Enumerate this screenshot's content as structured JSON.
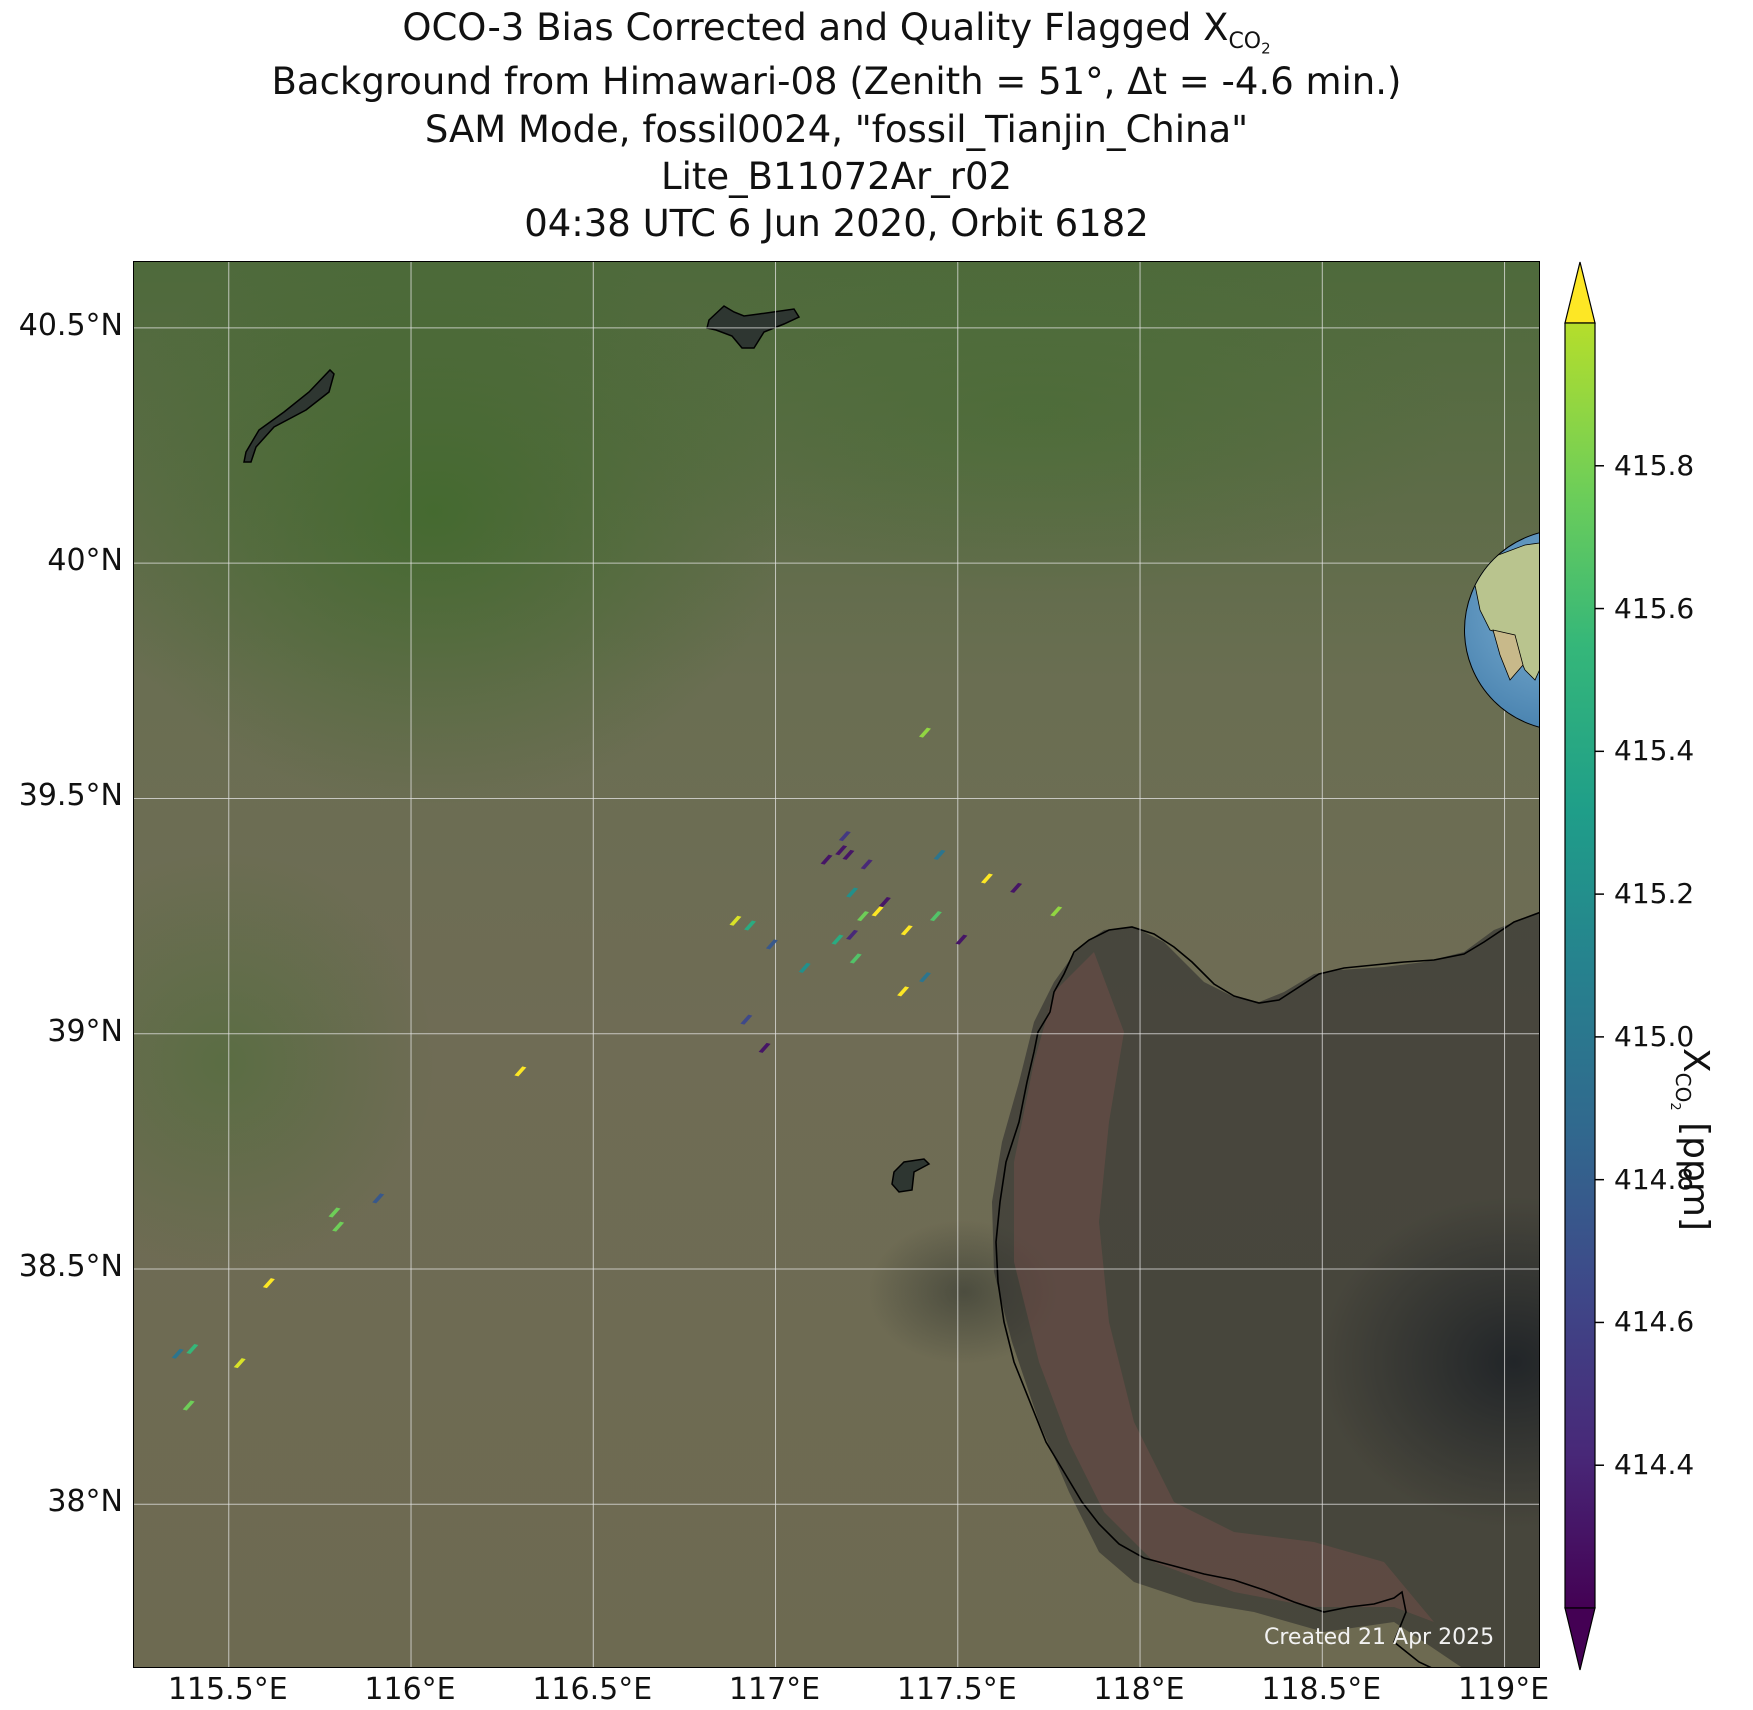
{
  "title": {
    "line1_prefix": "OCO-3 Bias Corrected and Quality Flagged X",
    "line1_sub": "CO",
    "line1_subsub": "2",
    "line2": "Background from Himawari-08 (Zenith = 51°, Δt = -4.6 min.)",
    "line3": "SAM Mode, fossil0024, \"fossil_Tianjin_China\"",
    "line4": "Lite_B11072Ar_r02",
    "line5": "04:38 UTC 6 Jun 2020, Orbit 6182"
  },
  "map": {
    "lon_range": [
      115.24,
      119.1
    ],
    "lat_range": [
      37.65,
      40.64
    ],
    "lon_ticks": [
      {
        "value": 115.5,
        "label": "115.5°E"
      },
      {
        "value": 116.0,
        "label": "116°E"
      },
      {
        "value": 116.5,
        "label": "116.5°E"
      },
      {
        "value": 117.0,
        "label": "117°E"
      },
      {
        "value": 117.5,
        "label": "117.5°E"
      },
      {
        "value": 118.0,
        "label": "118°E"
      },
      {
        "value": 118.5,
        "label": "118.5°E"
      },
      {
        "value": 119.0,
        "label": "119°E"
      }
    ],
    "lat_ticks": [
      {
        "value": 38.0,
        "label": "38°N"
      },
      {
        "value": 38.5,
        "label": "38.5°N"
      },
      {
        "value": 39.0,
        "label": "39°N"
      },
      {
        "value": 39.5,
        "label": "39.5°N"
      },
      {
        "value": 40.0,
        "label": "40°N"
      },
      {
        "value": 40.5,
        "label": "40.5°N"
      }
    ],
    "grid": true,
    "watermark": "Created 21 Apr 2025",
    "inset_globe": {
      "present": true,
      "target_marker": "red-star"
    }
  },
  "colorbar": {
    "label_prefix": "X",
    "label_sub": "CO",
    "label_subsub": "2",
    "label_suffix": " [ppm]",
    "range": [
      414.2,
      416.0
    ],
    "ticks": [
      "414.4",
      "414.6",
      "414.8",
      "415.0",
      "415.2",
      "415.4",
      "415.6",
      "415.8"
    ],
    "extend": "both",
    "colormap": "viridis"
  },
  "chart_data": {
    "type": "scatter",
    "x_quantity": "longitude (°E)",
    "y_quantity": "latitude (°N)",
    "value_quantity": "XCO2 (ppm)",
    "points": [
      {
        "lon": 117.41,
        "lat": 39.64,
        "xco2": 415.7
      },
      {
        "lon": 117.19,
        "lat": 39.42,
        "xco2": 414.5
      },
      {
        "lon": 117.18,
        "lat": 39.39,
        "xco2": 414.3
      },
      {
        "lon": 117.14,
        "lat": 39.37,
        "xco2": 414.3
      },
      {
        "lon": 117.2,
        "lat": 39.38,
        "xco2": 414.3
      },
      {
        "lon": 117.25,
        "lat": 39.36,
        "xco2": 414.4
      },
      {
        "lon": 117.45,
        "lat": 39.38,
        "xco2": 414.9
      },
      {
        "lon": 117.58,
        "lat": 39.33,
        "xco2": 416.0
      },
      {
        "lon": 117.66,
        "lat": 39.31,
        "xco2": 414.3
      },
      {
        "lon": 117.21,
        "lat": 39.3,
        "xco2": 415.1
      },
      {
        "lon": 117.3,
        "lat": 39.28,
        "xco2": 414.3
      },
      {
        "lon": 117.28,
        "lat": 39.26,
        "xco2": 416.0
      },
      {
        "lon": 117.24,
        "lat": 39.25,
        "xco2": 415.6
      },
      {
        "lon": 117.44,
        "lat": 39.25,
        "xco2": 415.5
      },
      {
        "lon": 117.77,
        "lat": 39.26,
        "xco2": 415.7
      },
      {
        "lon": 116.89,
        "lat": 39.24,
        "xco2": 415.9
      },
      {
        "lon": 116.93,
        "lat": 39.23,
        "xco2": 415.3
      },
      {
        "lon": 117.36,
        "lat": 39.22,
        "xco2": 416.0
      },
      {
        "lon": 117.21,
        "lat": 39.21,
        "xco2": 414.4
      },
      {
        "lon": 117.17,
        "lat": 39.2,
        "xco2": 415.3
      },
      {
        "lon": 117.51,
        "lat": 39.2,
        "xco2": 414.3
      },
      {
        "lon": 116.99,
        "lat": 39.19,
        "xco2": 414.7
      },
      {
        "lon": 117.22,
        "lat": 39.16,
        "xco2": 415.5
      },
      {
        "lon": 117.08,
        "lat": 39.14,
        "xco2": 415.1
      },
      {
        "lon": 117.41,
        "lat": 39.12,
        "xco2": 414.9
      },
      {
        "lon": 117.35,
        "lat": 39.09,
        "xco2": 416.0
      },
      {
        "lon": 116.92,
        "lat": 39.03,
        "xco2": 414.6
      },
      {
        "lon": 116.97,
        "lat": 38.97,
        "xco2": 414.3
      },
      {
        "lon": 116.3,
        "lat": 38.92,
        "xco2": 416.0
      },
      {
        "lon": 115.91,
        "lat": 38.65,
        "xco2": 414.7
      },
      {
        "lon": 115.79,
        "lat": 38.62,
        "xco2": 415.6
      },
      {
        "lon": 115.8,
        "lat": 38.59,
        "xco2": 415.6
      },
      {
        "lon": 115.61,
        "lat": 38.47,
        "xco2": 416.0
      },
      {
        "lon": 115.4,
        "lat": 38.33,
        "xco2": 415.4
      },
      {
        "lon": 115.36,
        "lat": 38.32,
        "xco2": 414.9
      },
      {
        "lon": 115.53,
        "lat": 38.3,
        "xco2": 415.9
      },
      {
        "lon": 115.39,
        "lat": 38.21,
        "xco2": 415.6
      }
    ]
  }
}
